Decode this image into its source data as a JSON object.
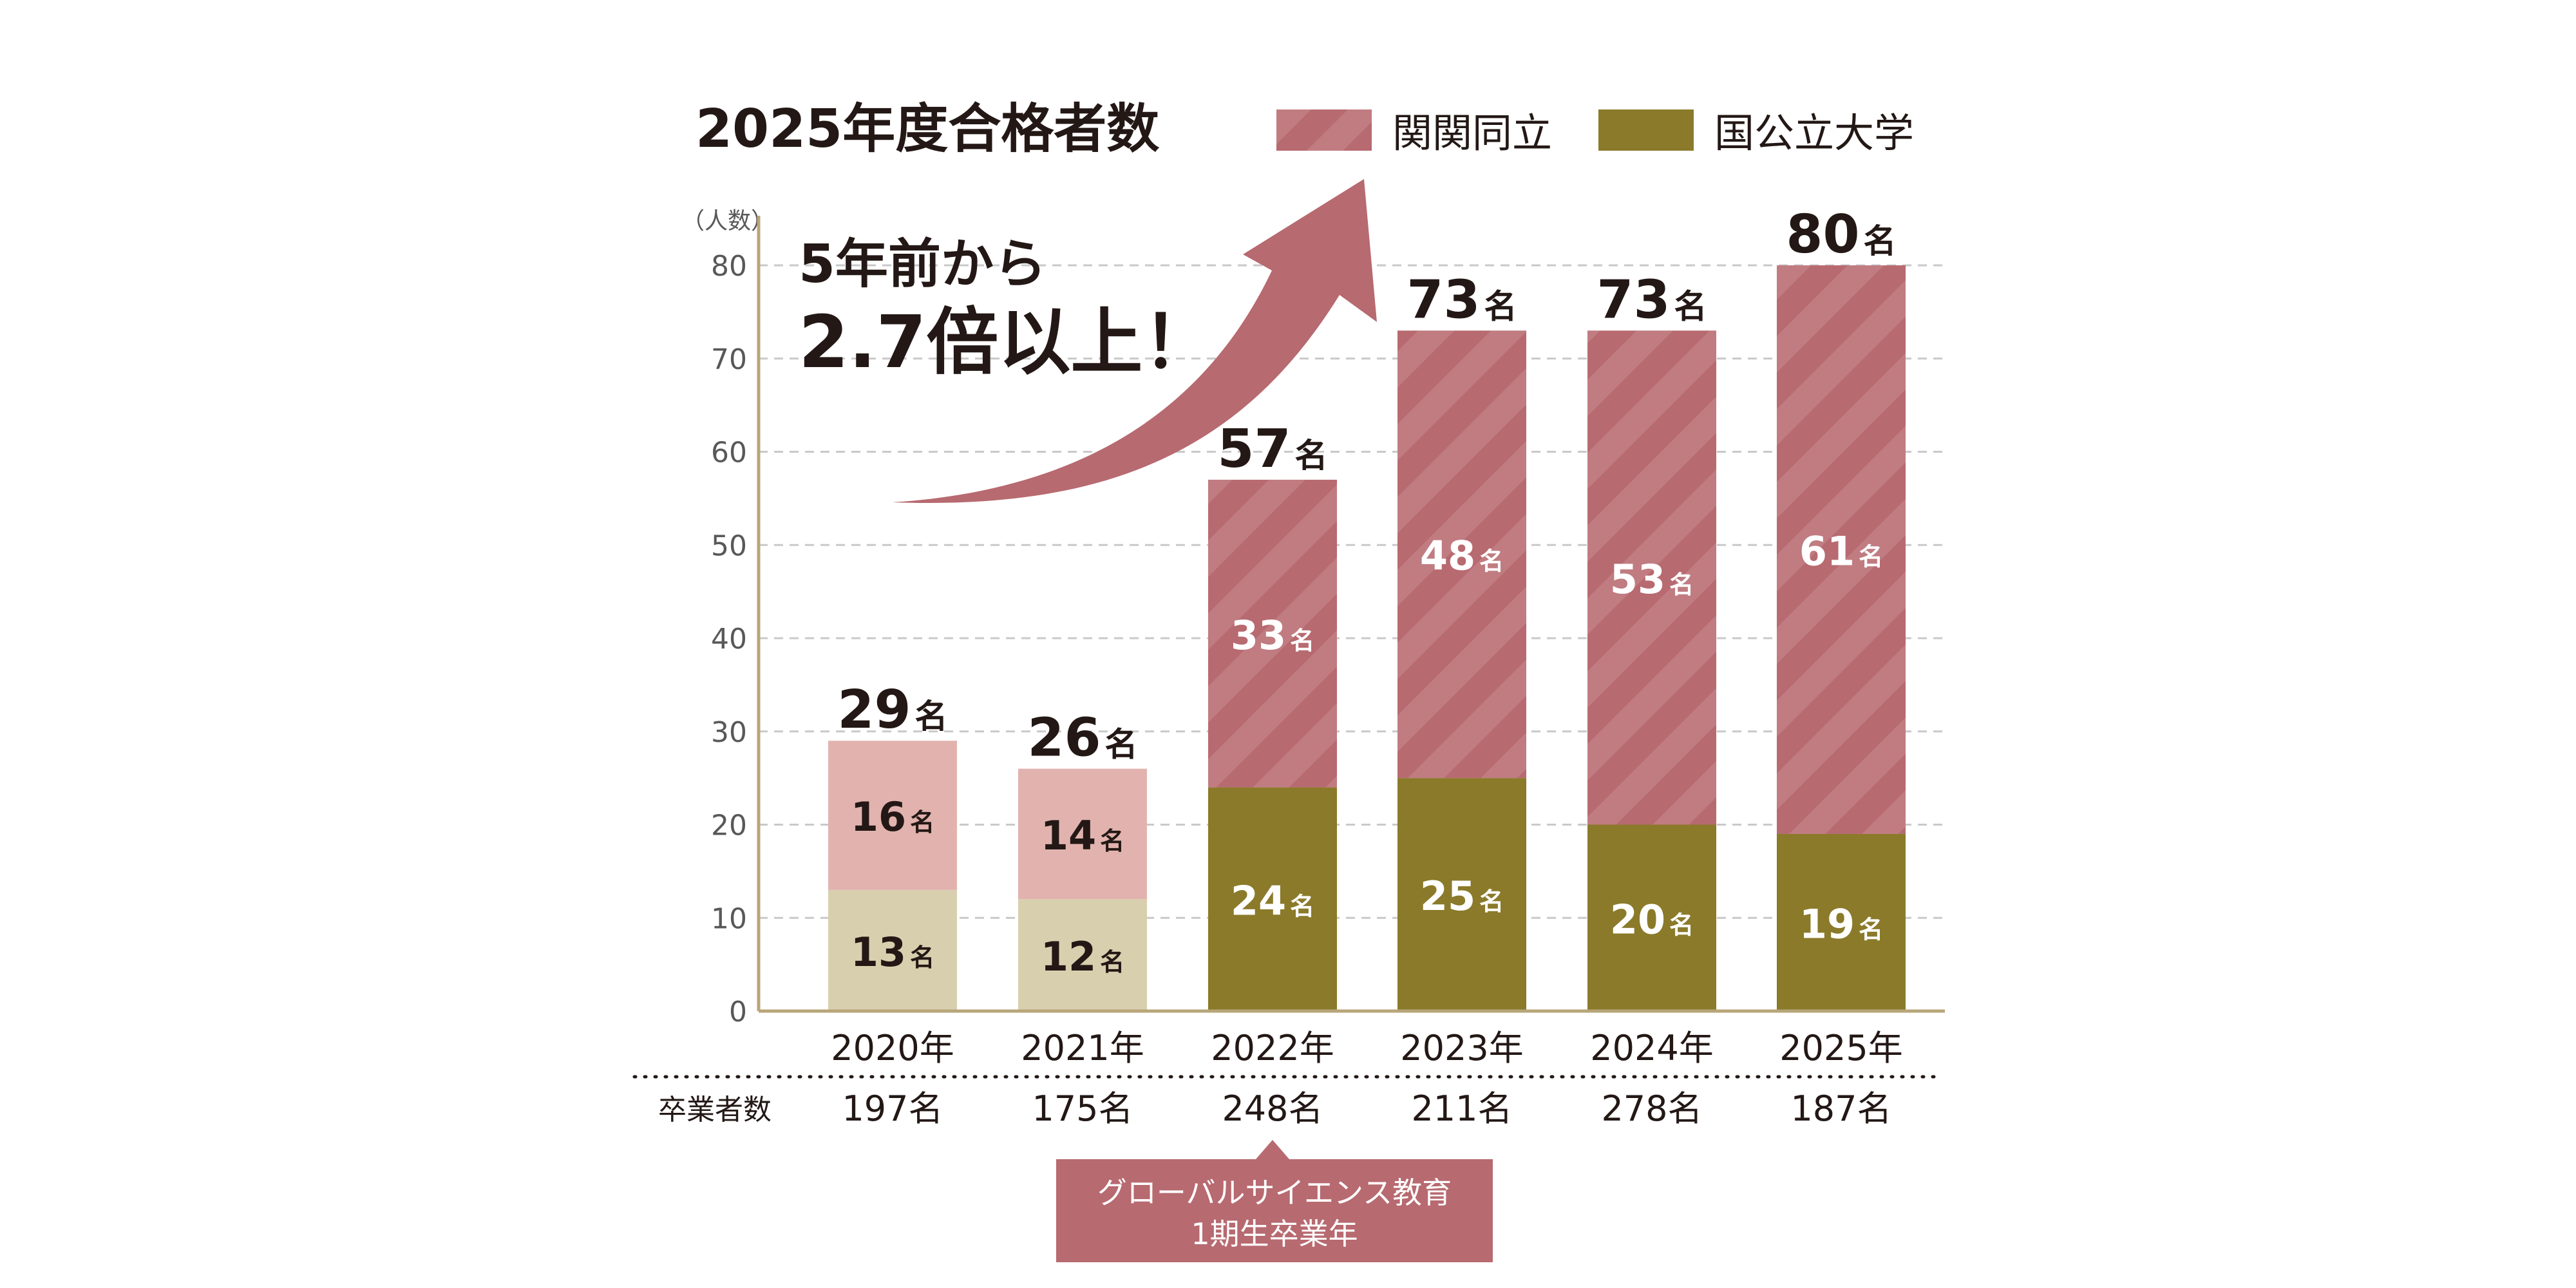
{
  "chart_data": {
    "type": "bar",
    "stacked": true,
    "title": "2025年度合格者数",
    "y_unit_label": "（人数）",
    "ylim": [
      0,
      80
    ],
    "y_ticks": [
      0,
      10,
      20,
      30,
      40,
      50,
      60,
      70,
      80
    ],
    "grid": true,
    "legend_position": "top-right",
    "count_suffix": "名",
    "categories": [
      "2020年",
      "2021年",
      "2022年",
      "2023年",
      "2024年",
      "2025年"
    ],
    "series": [
      {
        "name": "国公立大学",
        "values": [
          13,
          12,
          24,
          25,
          20,
          19
        ],
        "color": "#8a7a2a",
        "light_color": "#d8cfae"
      },
      {
        "name": "関関同立",
        "values": [
          16,
          14,
          33,
          48,
          53,
          61
        ],
        "color": "#b76a70",
        "light_color": "#e2b3ae"
      }
    ],
    "totals": [
      29,
      26,
      57,
      73,
      73,
      80
    ],
    "graduates_label": "卒業者数",
    "graduates": [
      "197名",
      "175名",
      "248名",
      "211名",
      "278名",
      "187名"
    ],
    "annotation": {
      "line1": "5年前から",
      "line2": "2.7倍以上！"
    },
    "callout": {
      "category_index": 2,
      "lines": [
        "グローバルサイエンス教育",
        "1期生卒業年"
      ]
    }
  }
}
